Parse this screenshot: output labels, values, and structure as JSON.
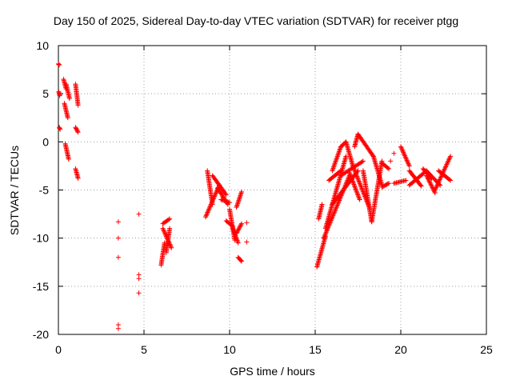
{
  "chart_data": {
    "type": "scatter",
    "title": "Day 150 of 2025, Sidereal Day-to-day VTEC variation (SDTVAR) for receiver ptgg",
    "xlabel": "GPS time / hours",
    "ylabel": "SDTVAR / TECUs",
    "xlim": [
      0,
      25
    ],
    "ylim": [
      -20,
      10
    ],
    "xticks": [
      "0",
      "5",
      "10",
      "15",
      "20",
      "25"
    ],
    "yticks": [
      "-20",
      "-15",
      "-10",
      "-5",
      "0",
      "5",
      "10"
    ],
    "grid": true,
    "marker": "+",
    "color": "#ff0000",
    "series": [
      {
        "name": "SDTVAR",
        "segments": [
          {
            "t0": 0.0,
            "t1": 0.05,
            "v0": 8.1,
            "v1": 8.0
          },
          {
            "t0": 0.02,
            "t1": 0.08,
            "v0": 5.2,
            "v1": 4.8
          },
          {
            "t0": 0.05,
            "t1": 0.1,
            "v0": 1.5,
            "v1": 1.3
          },
          {
            "t0": 0.3,
            "t1": 0.45,
            "v0": 6.5,
            "v1": 5.5
          },
          {
            "t0": 0.35,
            "t1": 0.55,
            "v0": 4.0,
            "v1": 2.5
          },
          {
            "t0": 0.4,
            "t1": 0.6,
            "v0": -0.2,
            "v1": -1.8
          },
          {
            "t0": 0.45,
            "t1": 0.65,
            "v0": 6.0,
            "v1": 4.5
          },
          {
            "t0": 1.0,
            "t1": 1.15,
            "v0": 6.0,
            "v1": 3.8
          },
          {
            "t0": 1.0,
            "t1": 1.15,
            "v0": 1.5,
            "v1": 1.0
          },
          {
            "t0": 1.0,
            "t1": 1.15,
            "v0": -2.8,
            "v1": -3.8
          },
          {
            "t0": 6.0,
            "t1": 6.2,
            "v0": -12.8,
            "v1": -10.5
          },
          {
            "t0": 6.1,
            "t1": 6.5,
            "v0": -8.5,
            "v1": -8.0
          },
          {
            "t0": 6.1,
            "t1": 6.6,
            "v0": -9.0,
            "v1": -11.0
          },
          {
            "t0": 6.3,
            "t1": 6.5,
            "v0": -11.5,
            "v1": -9.0
          },
          {
            "t0": 8.6,
            "t1": 9.4,
            "v0": -7.8,
            "v1": -4.5
          },
          {
            "t0": 8.7,
            "t1": 9.0,
            "v0": -3.0,
            "v1": -6.5
          },
          {
            "t0": 9.0,
            "t1": 9.8,
            "v0": -3.5,
            "v1": -5.5
          },
          {
            "t0": 9.3,
            "t1": 9.9,
            "v0": -4.8,
            "v1": -6.5
          },
          {
            "t0": 9.5,
            "t1": 10.0,
            "v0": -6.0,
            "v1": -6.3
          },
          {
            "t0": 9.8,
            "t1": 10.2,
            "v0": -8.2,
            "v1": -8.8
          },
          {
            "t0": 10.0,
            "t1": 10.3,
            "v0": -7.0,
            "v1": -10.2
          },
          {
            "t0": 10.2,
            "t1": 10.5,
            "v0": -9.0,
            "v1": -10.5
          },
          {
            "t0": 10.4,
            "t1": 10.7,
            "v0": -9.5,
            "v1": -8.5
          },
          {
            "t0": 10.4,
            "t1": 10.7,
            "v0": -6.8,
            "v1": -5.2
          },
          {
            "t0": 10.5,
            "t1": 10.7,
            "v0": -12.0,
            "v1": -12.4
          },
          {
            "t0": 15.1,
            "t1": 15.6,
            "v0": -13.0,
            "v1": -9.8
          },
          {
            "t0": 15.2,
            "t1": 15.4,
            "v0": -8.0,
            "v1": -6.5
          },
          {
            "t0": 15.5,
            "t1": 17.0,
            "v0": -10.0,
            "v1": -3.5
          },
          {
            "t0": 15.6,
            "t1": 16.8,
            "v0": -9.0,
            "v1": -1.5
          },
          {
            "t0": 15.8,
            "t1": 16.5,
            "v0": -4.0,
            "v1": -3.0
          },
          {
            "t0": 16.0,
            "t1": 16.5,
            "v0": -3.0,
            "v1": -0.5
          },
          {
            "t0": 16.5,
            "t1": 16.8,
            "v0": -0.5,
            "v1": 0.0
          },
          {
            "t0": 16.8,
            "t1": 17.2,
            "v0": 0.0,
            "v1": -2.5
          },
          {
            "t0": 17.2,
            "t1": 18.2,
            "v0": -2.5,
            "v1": -7.0
          },
          {
            "t0": 16.0,
            "t1": 17.5,
            "v0": -6.5,
            "v1": -3.0
          },
          {
            "t0": 16.5,
            "t1": 17.8,
            "v0": -3.5,
            "v1": -2.0
          },
          {
            "t0": 17.3,
            "t1": 17.5,
            "v0": -0.5,
            "v1": 0.8
          },
          {
            "t0": 17.5,
            "t1": 18.4,
            "v0": 0.8,
            "v1": -1.5
          },
          {
            "t0": 18.4,
            "t1": 18.9,
            "v0": -1.5,
            "v1": -4.5
          },
          {
            "t0": 17.8,
            "t1": 18.3,
            "v0": -3.0,
            "v1": -8.3
          },
          {
            "t0": 18.3,
            "t1": 18.9,
            "v0": -8.3,
            "v1": -2.0
          },
          {
            "t0": 17.0,
            "t1": 17.6,
            "v0": -3.2,
            "v1": -6.0
          },
          {
            "t0": 18.9,
            "t1": 19.3,
            "v0": -4.7,
            "v1": -4.3
          },
          {
            "t0": 18.9,
            "t1": 19.3,
            "v0": -2.2,
            "v1": -2.8
          },
          {
            "t0": 19.6,
            "t1": 20.3,
            "v0": -4.3,
            "v1": -4.0
          },
          {
            "t0": 20.0,
            "t1": 20.5,
            "v0": -0.5,
            "v1": -2.5
          },
          {
            "t0": 20.5,
            "t1": 21.2,
            "v0": -3.0,
            "v1": -4.6
          },
          {
            "t0": 20.5,
            "t1": 21.5,
            "v0": -4.5,
            "v1": -3.0
          },
          {
            "t0": 21.3,
            "t1": 21.8,
            "v0": -2.8,
            "v1": -3.8
          },
          {
            "t0": 21.5,
            "t1": 22.0,
            "v0": -3.5,
            "v1": -5.3
          },
          {
            "t0": 21.5,
            "t1": 22.3,
            "v0": -3.0,
            "v1": -4.5
          },
          {
            "t0": 22.0,
            "t1": 22.9,
            "v0": -5.0,
            "v1": -1.5
          },
          {
            "t0": 22.2,
            "t1": 22.9,
            "v0": -3.0,
            "v1": -4.0
          }
        ],
        "points": [
          {
            "t": 3.5,
            "v": -8.3
          },
          {
            "t": 3.5,
            "v": -10.0
          },
          {
            "t": 3.5,
            "v": -12.0
          },
          {
            "t": 3.5,
            "v": -19.0
          },
          {
            "t": 3.5,
            "v": -19.4
          },
          {
            "t": 4.7,
            "v": -7.5
          },
          {
            "t": 4.7,
            "v": -13.8
          },
          {
            "t": 4.7,
            "v": -14.2
          },
          {
            "t": 4.7,
            "v": -15.7
          },
          {
            "t": 11.0,
            "v": -8.4
          },
          {
            "t": 11.0,
            "v": -10.4
          },
          {
            "t": 19.6,
            "v": -1.2
          },
          {
            "t": 19.4,
            "v": -2.0
          }
        ]
      }
    ]
  }
}
